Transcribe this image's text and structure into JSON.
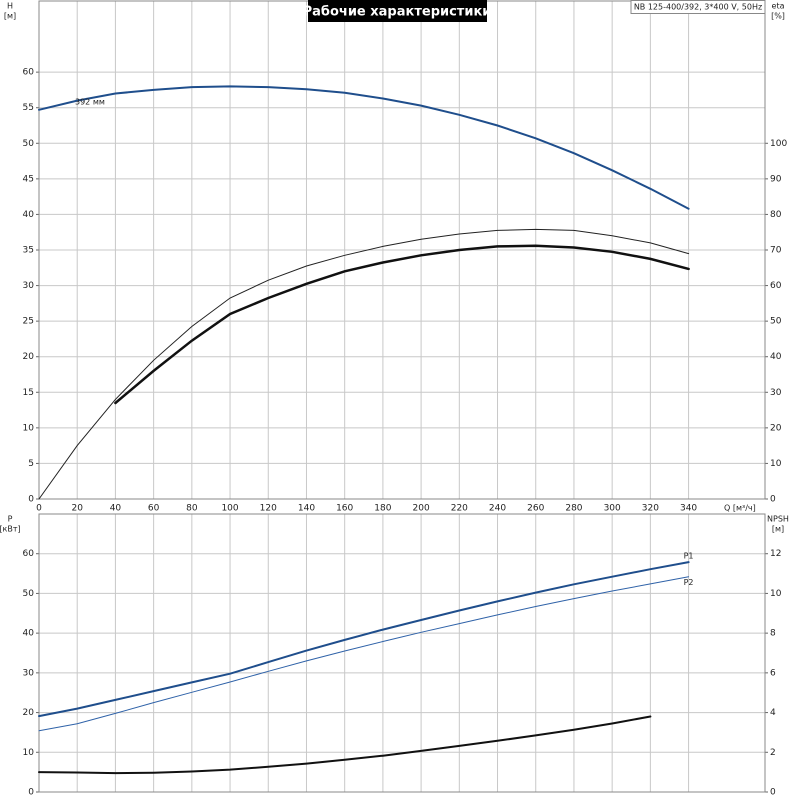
{
  "chart_data": [
    {
      "type": "line",
      "title": "Рабочие характеристики",
      "subtitle": "NB 125-400/392, 3*400 V, 50Hz",
      "xlabel": "Q [м³/ч]",
      "ylabel": [
        "H",
        "[м]"
      ],
      "y2label": [
        "eta",
        "[%]"
      ],
      "xlim": [
        0,
        380
      ],
      "xticks": [
        0,
        20,
        40,
        60,
        80,
        100,
        120,
        140,
        160,
        180,
        200,
        220,
        240,
        260,
        280,
        300,
        320,
        340
      ],
      "ylim": [
        0,
        70
      ],
      "yticks": [
        0,
        5,
        10,
        15,
        20,
        25,
        30,
        35,
        40,
        45,
        50,
        55,
        60
      ],
      "y2lim": [
        0,
        140
      ],
      "y2ticks": [
        0,
        10,
        20,
        30,
        40,
        50,
        60,
        70,
        80,
        90,
        100
      ],
      "grid": true,
      "x": [
        0,
        20,
        40,
        60,
        80,
        100,
        120,
        140,
        160,
        180,
        200,
        220,
        240,
        260,
        280,
        300,
        320,
        340
      ],
      "series": [
        {
          "name": "392 мм",
          "color": "#1f4e8c",
          "width": 2,
          "axis": "y",
          "values": [
            54.7,
            56.0,
            57.0,
            57.5,
            57.9,
            58.0,
            57.9,
            57.6,
            57.1,
            56.3,
            55.3,
            54.0,
            52.5,
            50.7,
            48.6,
            46.2,
            43.6,
            40.8
          ]
        },
        {
          "color": "#222222",
          "width": 1,
          "axis": "y2",
          "values": [
            0,
            15,
            28,
            39,
            48.5,
            56.5,
            61.5,
            65.5,
            68.5,
            71,
            73,
            74.5,
            75.5,
            75.8,
            75.5,
            74,
            72,
            69
          ]
        },
        {
          "color": "#111111",
          "width": 2.5,
          "axis": "y2",
          "values": [
            null,
            null,
            27,
            36,
            44.5,
            52,
            56.5,
            60.5,
            64,
            66.5,
            68.5,
            70,
            71,
            71.2,
            70.7,
            69.5,
            67.5,
            64.7
          ]
        }
      ]
    },
    {
      "type": "line",
      "ylabel": [
        "P",
        "[кВт]"
      ],
      "y2label": [
        "NPSH",
        "[м]"
      ],
      "xlim": [
        0,
        380
      ],
      "ylim": [
        0,
        70
      ],
      "yticks": [
        0,
        10,
        20,
        30,
        40,
        50,
        60
      ],
      "y2lim": [
        0,
        14
      ],
      "y2ticks": [
        0,
        2,
        4,
        6,
        8,
        10,
        12
      ],
      "grid": true,
      "x": [
        0,
        20,
        40,
        60,
        80,
        100,
        120,
        140,
        160,
        180,
        200,
        220,
        240,
        260,
        280,
        300,
        320,
        340
      ],
      "series": [
        {
          "name": "P1",
          "color": "#1f4e8c",
          "width": 2,
          "axis": "y",
          "values": [
            19.1,
            21.0,
            23.2,
            25.4,
            27.6,
            29.8,
            32.7,
            35.6,
            38.3,
            40.9,
            43.3,
            45.7,
            48.0,
            50.2,
            52.3,
            54.2,
            56.1,
            57.9
          ]
        },
        {
          "name": "P2",
          "color": "#2f62a8",
          "width": 1,
          "axis": "y",
          "values": [
            15.4,
            17.2,
            19.8,
            22.5,
            25.1,
            27.7,
            30.4,
            33.0,
            35.5,
            37.9,
            40.2,
            42.4,
            44.6,
            46.7,
            48.7,
            50.6,
            52.4,
            54.2
          ]
        },
        {
          "color": "#111111",
          "width": 2,
          "axis": "y2",
          "values": [
            1.0,
            0.98,
            0.95,
            0.97,
            1.03,
            1.13,
            1.27,
            1.43,
            1.62,
            1.83,
            2.07,
            2.32,
            2.58,
            2.85,
            3.13,
            3.45,
            3.8,
            null
          ]
        }
      ]
    }
  ]
}
